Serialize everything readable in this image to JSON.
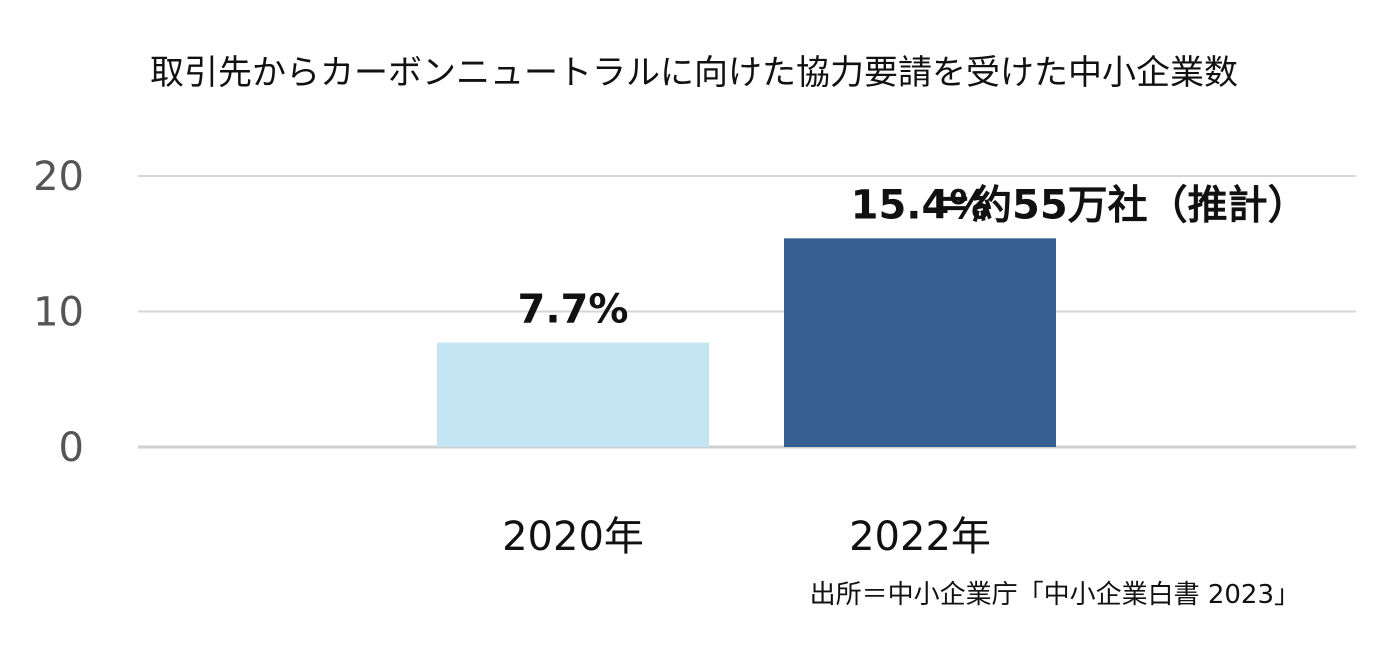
{
  "chart_data": {
    "type": "bar",
    "title": "取引先からカーボンニュートラルに向けた協力要請を受けた中小企業数",
    "categories": [
      "2020年",
      "2022年"
    ],
    "values": [
      7.7,
      15.4
    ],
    "data_labels": [
      "7.7%",
      "15.4%"
    ],
    "annotation": "＝約55万社（推計）",
    "yticks": [
      "0",
      "10",
      "20"
    ],
    "ylim": [
      0,
      20
    ],
    "xlabel": "",
    "ylabel": "",
    "grid": true,
    "colors": [
      "#c3e4f3",
      "#36608f"
    ],
    "source": "出所＝中小企業庁「中小企業白書 2023」"
  }
}
